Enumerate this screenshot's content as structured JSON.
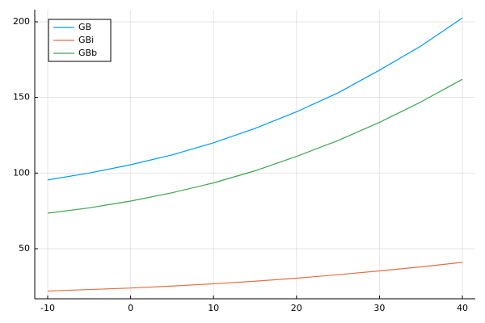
{
  "chart_data": {
    "type": "line",
    "x": [
      -10,
      -5,
      0,
      5,
      10,
      15,
      20,
      25,
      30,
      35,
      40
    ],
    "series": [
      {
        "name": "GB",
        "color": "#009af9",
        "values": [
          95.5,
          100,
          105.5,
          112,
          120,
          129.5,
          140.5,
          153,
          168,
          184,
          202.5
        ]
      },
      {
        "name": "GBi",
        "color": "#e26f46",
        "values": [
          22,
          23,
          24,
          25.3,
          26.8,
          28.5,
          30.5,
          32.8,
          35.3,
          38,
          41
        ]
      },
      {
        "name": "GBb",
        "color": "#3ea44e",
        "values": [
          73.5,
          77,
          81.5,
          87,
          93.5,
          101.5,
          111,
          121.5,
          133.5,
          147,
          162
        ]
      }
    ],
    "xlim": [
      -11.56,
      41.56
    ],
    "xticks": [
      -10,
      0,
      10,
      20,
      30,
      40
    ],
    "ylim": [
      16.9,
      208
    ],
    "yticks": [
      50,
      100,
      150,
      200
    ],
    "grid": true,
    "legend": "top-left"
  }
}
